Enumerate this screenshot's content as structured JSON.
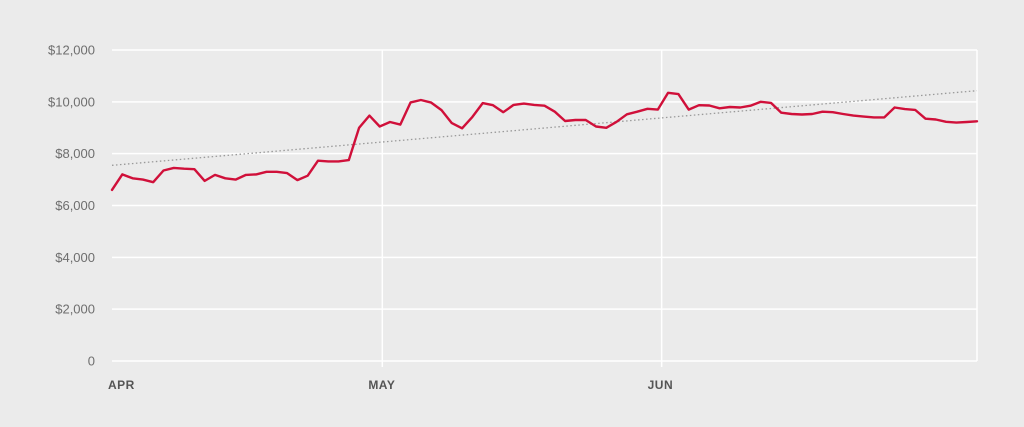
{
  "colors": {
    "background": "#ebebeb",
    "grid": "#ffffff",
    "series": "#d0103a",
    "trend": "#999999",
    "tick_text": "#6e6e6e"
  },
  "chart_data": {
    "type": "line",
    "title": "",
    "xlabel": "",
    "ylabel": "",
    "ylim": [
      0,
      12000
    ],
    "y_ticks": [
      0,
      2000,
      4000,
      6000,
      8000,
      10000,
      12000
    ],
    "y_tick_labels": [
      "0",
      "$2,000",
      "$4,000",
      "$6,000",
      "$8,000",
      "$10,000",
      "$12,000"
    ],
    "x_month_ticks": [
      {
        "label": "APR",
        "day": 0
      },
      {
        "label": "MAY",
        "day": 30
      },
      {
        "label": "JUN",
        "day": 61
      }
    ],
    "x_range_days": [
      0,
      96
    ],
    "grid": true,
    "series": [
      {
        "values": [
          6600,
          7200,
          7050,
          7000,
          6900,
          7350,
          7450,
          7420,
          7400,
          6950,
          7180,
          7050,
          7000,
          7180,
          7200,
          7300,
          7300,
          7250,
          6980,
          7150,
          7730,
          7700,
          7700,
          7750,
          9000,
          9470,
          9050,
          9220,
          9120,
          9980,
          10070,
          9970,
          9680,
          9180,
          8980,
          9420,
          9950,
          9870,
          9600,
          9880,
          9930,
          9880,
          9850,
          9620,
          9260,
          9300,
          9300,
          9050,
          9000,
          9230,
          9520,
          9620,
          9730,
          9700,
          10350,
          10300,
          9700,
          9870,
          9860,
          9750,
          9800,
          9780,
          9850,
          10000,
          9960,
          9580,
          9530,
          9510,
          9530,
          9620,
          9600,
          9530,
          9470,
          9430,
          9400,
          9400,
          9780,
          9720,
          9690,
          9350,
          9320,
          9230,
          9200,
          9220,
          9250
        ]
      }
    ],
    "trendline": {
      "start": 7550,
      "end": 10430
    }
  }
}
